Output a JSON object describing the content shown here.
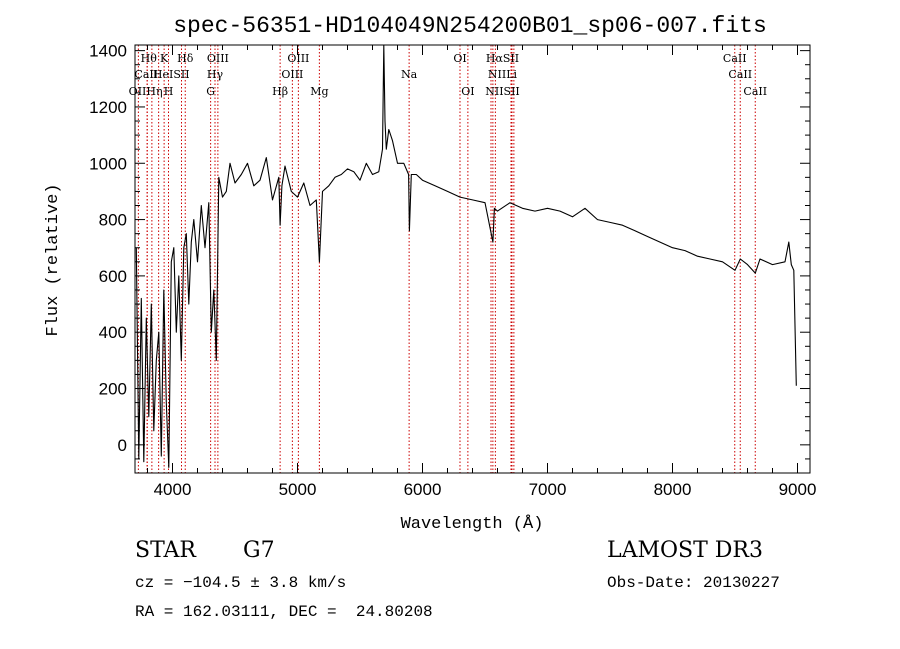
{
  "chart_data": {
    "type": "line",
    "title": "spec-56351-HD104049N254200B01_sp06-007.fits",
    "xlabel": "Wavelength (Å)",
    "ylabel": "Flux (relative)",
    "xlim": [
      3700,
      9100
    ],
    "ylim": [
      -100,
      1420
    ],
    "xticks": [
      4000,
      5000,
      6000,
      7000,
      8000,
      9000
    ],
    "yticks": [
      0,
      200,
      400,
      600,
      800,
      1000,
      1200,
      1400
    ],
    "grid": false,
    "line_color": "#000000",
    "marker_color": "#cc0000",
    "series": [
      {
        "name": "flux",
        "x": [
          3710,
          3730,
          3750,
          3770,
          3790,
          3810,
          3830,
          3850,
          3870,
          3890,
          3910,
          3930,
          3950,
          3970,
          3990,
          4010,
          4030,
          4050,
          4070,
          4090,
          4110,
          4130,
          4150,
          4170,
          4200,
          4230,
          4260,
          4290,
          4310,
          4330,
          4350,
          4370,
          4400,
          4430,
          4460,
          4500,
          4550,
          4600,
          4650,
          4700,
          4750,
          4800,
          4850,
          4861,
          4875,
          4900,
          4950,
          5000,
          5050,
          5100,
          5150,
          5175,
          5200,
          5250,
          5300,
          5350,
          5400,
          5450,
          5500,
          5550,
          5600,
          5650,
          5680,
          5690,
          5700,
          5710,
          5730,
          5760,
          5800,
          5850,
          5889,
          5895,
          5910,
          5950,
          6000,
          6100,
          6200,
          6300,
          6400,
          6500,
          6563,
          6575,
          6600,
          6700,
          6800,
          6900,
          7000,
          7100,
          7200,
          7300,
          7400,
          7500,
          7600,
          7700,
          7800,
          7900,
          8000,
          8100,
          8200,
          8300,
          8400,
          8500,
          8542,
          8600,
          8662,
          8700,
          8800,
          8900,
          8930,
          8950,
          8970,
          8990
        ],
        "values": [
          700,
          -50,
          520,
          -60,
          450,
          100,
          500,
          50,
          300,
          400,
          -40,
          550,
          150,
          -80,
          650,
          700,
          400,
          600,
          300,
          700,
          750,
          500,
          720,
          800,
          650,
          850,
          700,
          860,
          400,
          550,
          300,
          950,
          880,
          900,
          1000,
          930,
          960,
          1000,
          920,
          940,
          1020,
          870,
          950,
          780,
          920,
          990,
          900,
          880,
          930,
          850,
          870,
          650,
          900,
          920,
          950,
          960,
          980,
          970,
          940,
          1000,
          960,
          970,
          1050,
          1420,
          1150,
          1050,
          1120,
          1080,
          1000,
          1000,
          960,
          760,
          960,
          960,
          940,
          920,
          900,
          880,
          870,
          860,
          720,
          840,
          830,
          860,
          840,
          830,
          840,
          830,
          810,
          840,
          800,
          790,
          780,
          760,
          740,
          720,
          700,
          690,
          670,
          660,
          650,
          620,
          660,
          640,
          610,
          660,
          640,
          650,
          720,
          640,
          620,
          210
        ]
      }
    ],
    "lines": [
      {
        "name": "OII",
        "wavelength": 3727
      },
      {
        "name": "Hθ",
        "wavelength": 3797
      },
      {
        "name": "CaII",
        "wavelength": 3798
      },
      {
        "name": "Hη",
        "wavelength": 3835
      },
      {
        "name": "HeI",
        "wavelength": 3889
      },
      {
        "name": "K",
        "wavelength": 3933
      },
      {
        "name": "H",
        "wavelength": 3968
      },
      {
        "name": "Hδ",
        "wavelength": 4102
      },
      {
        "name": "SII",
        "wavelength": 4072
      },
      {
        "name": "G",
        "wavelength": 4305
      },
      {
        "name": "Hγ",
        "wavelength": 4340
      },
      {
        "name": "OIII",
        "wavelength": 4363
      },
      {
        "name": "Hβ",
        "wavelength": 4861
      },
      {
        "name": "OIII",
        "wavelength": 4959
      },
      {
        "name": "OIII",
        "wavelength": 5007
      },
      {
        "name": "Mg",
        "wavelength": 5175
      },
      {
        "name": "Na",
        "wavelength": 5893
      },
      {
        "name": "OI",
        "wavelength": 6300
      },
      {
        "name": "OI",
        "wavelength": 6363
      },
      {
        "name": "NII",
        "wavelength": 6548
      },
      {
        "name": "Hα",
        "wavelength": 6563
      },
      {
        "name": "NII",
        "wavelength": 6583
      },
      {
        "name": "Li",
        "wavelength": 6708
      },
      {
        "name": "SII",
        "wavelength": 6716
      },
      {
        "name": "SII",
        "wavelength": 6731
      },
      {
        "name": "CaII",
        "wavelength": 8498
      },
      {
        "name": "CaII",
        "wavelength": 8542
      },
      {
        "name": "CaII",
        "wavelength": 8662
      }
    ],
    "line_labels": [
      {
        "text": "Hθ",
        "wavelength": 3810,
        "row": 1
      },
      {
        "text": "K",
        "wavelength": 3933,
        "row": 1
      },
      {
        "text": "Hδ",
        "wavelength": 4102,
        "row": 1
      },
      {
        "text": "OIII",
        "wavelength": 4363,
        "row": 1
      },
      {
        "text": "OIII",
        "wavelength": 5007,
        "row": 1
      },
      {
        "text": "OI",
        "wavelength": 6300,
        "row": 1
      },
      {
        "text": "HαSII",
        "wavelength": 6640,
        "row": 1
      },
      {
        "text": "CaII",
        "wavelength": 8498,
        "row": 1
      },
      {
        "text": "CaII",
        "wavelength": 3790,
        "row": 2
      },
      {
        "text": "HeISII",
        "wavelength": 3990,
        "row": 2
      },
      {
        "text": "Hγ",
        "wavelength": 4340,
        "row": 2
      },
      {
        "text": "OIII",
        "wavelength": 4959,
        "row": 2
      },
      {
        "text": "Na",
        "wavelength": 5893,
        "row": 2
      },
      {
        "text": "NIILi",
        "wavelength": 6640,
        "row": 2
      },
      {
        "text": "CaII",
        "wavelength": 8542,
        "row": 2
      },
      {
        "text": "OIIHη",
        "wavelength": 3785,
        "row": 3
      },
      {
        "text": "H",
        "wavelength": 3968,
        "row": 3
      },
      {
        "text": "G",
        "wavelength": 4305,
        "row": 3
      },
      {
        "text": "Hβ",
        "wavelength": 4861,
        "row": 3
      },
      {
        "text": "Mg",
        "wavelength": 5175,
        "row": 3
      },
      {
        "text": "OI",
        "wavelength": 6363,
        "row": 3
      },
      {
        "text": "NIISII",
        "wavelength": 6640,
        "row": 3
      },
      {
        "text": "CaII",
        "wavelength": 8662,
        "row": 3
      }
    ]
  },
  "info": {
    "object_class": "STAR",
    "subclass": "G7",
    "survey": "LAMOST DR3",
    "cz": "cz = −104.5 ± 3.8 km/s",
    "obs_date": "Obs-Date: 20130227",
    "coords": "RA = 162.03111, DEC =  24.80208"
  }
}
